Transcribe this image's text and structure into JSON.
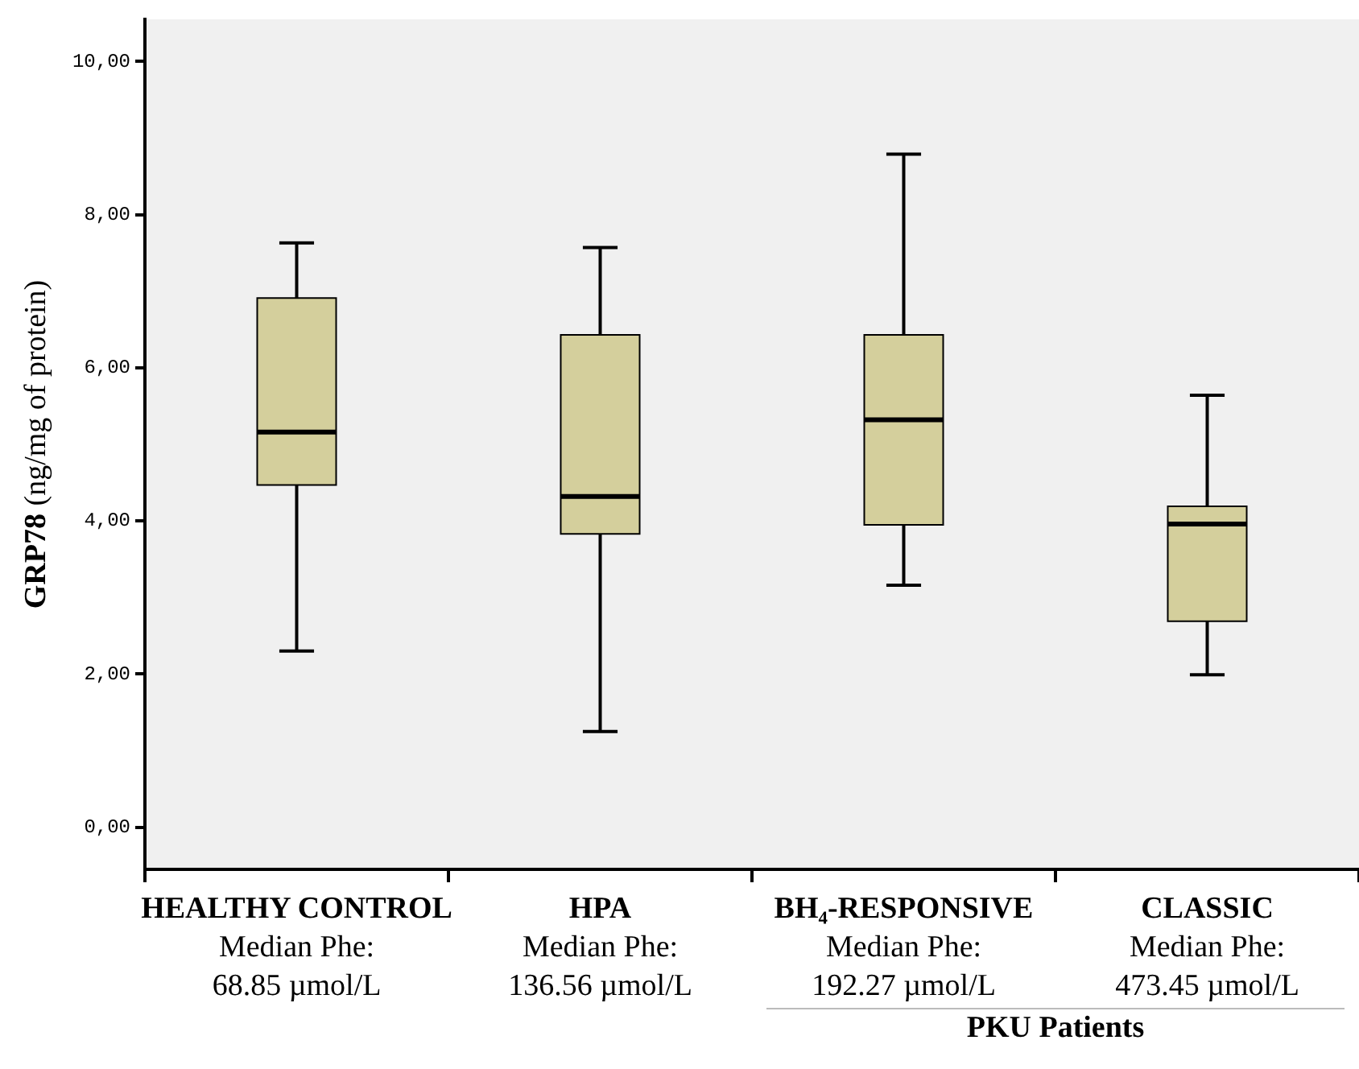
{
  "chart_data": {
    "type": "box",
    "ylabel": "GRP78 (ng/mg of protein)",
    "categories": [
      "HEALTHY CONTROL\nMedian Phe:\n68.85 µmol/L",
      "HPA\nMedian Phe:\n136.56 µmol/L",
      "BH₄-RESPONSIVE\nMedian Phe:\n192.27 µmol/L",
      "CLASSIC\nMedian Phe:\n473.45 µmol/L"
    ],
    "series": [
      {
        "color": "#d4cf9c",
        "boxes": [
          {
            "low": 2.3,
            "q1": 4.47,
            "median": 5.16,
            "q3": 6.91,
            "high": 7.63
          },
          {
            "low": 1.25,
            "q1": 3.83,
            "median": 4.32,
            "q3": 6.43,
            "high": 7.57
          },
          {
            "low": 3.16,
            "q1": 3.95,
            "median": 5.32,
            "q3": 6.43,
            "high": 8.79
          },
          {
            "low": 1.99,
            "q1": 2.69,
            "median": 3.96,
            "q3": 4.19,
            "high": 5.64
          }
        ]
      }
    ],
    "ylim": [
      -0.55,
      10.55
    ],
    "yticks": [
      {
        "value": 0,
        "label": "0,00"
      },
      {
        "value": 2,
        "label": "2,00"
      },
      {
        "value": 4,
        "label": "4,00"
      },
      {
        "value": 6,
        "label": "6,00"
      },
      {
        "value": 8,
        "label": "8,00"
      },
      {
        "value": 10,
        "label": "10,00"
      }
    ],
    "annotations": [
      "PKU Patients"
    ],
    "grid": false,
    "legend": false
  }
}
